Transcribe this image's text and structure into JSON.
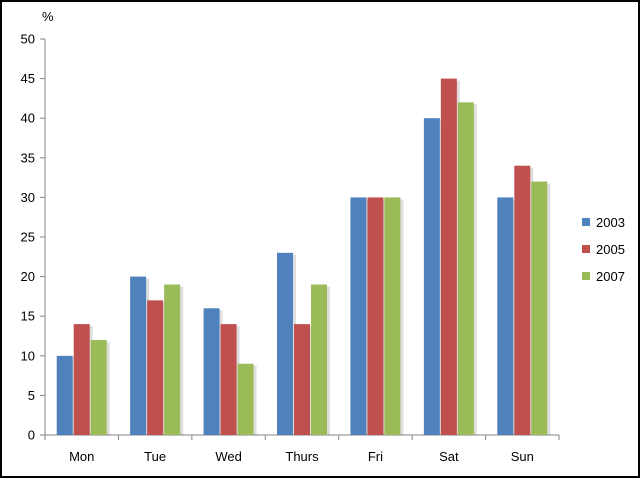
{
  "chart_data": {
    "type": "bar",
    "ylabel": "%",
    "ylim": [
      0,
      50
    ],
    "yticks": [
      0,
      5,
      10,
      15,
      20,
      25,
      30,
      35,
      40,
      45,
      50
    ],
    "categories": [
      "Mon",
      "Tue",
      "Wed",
      "Thurs",
      "Fri",
      "Sat",
      "Sun"
    ],
    "series": [
      {
        "name": "2003",
        "color": "#4F81BD",
        "values": [
          10,
          20,
          16,
          23,
          30,
          40,
          30
        ]
      },
      {
        "name": "2005",
        "color": "#C0504D",
        "values": [
          14,
          17,
          14,
          14,
          30,
          45,
          34
        ]
      },
      {
        "name": "2007",
        "color": "#9BBB59",
        "values": [
          12,
          19,
          9,
          19,
          30,
          42,
          32
        ]
      }
    ],
    "grid": false,
    "legend": "right"
  }
}
